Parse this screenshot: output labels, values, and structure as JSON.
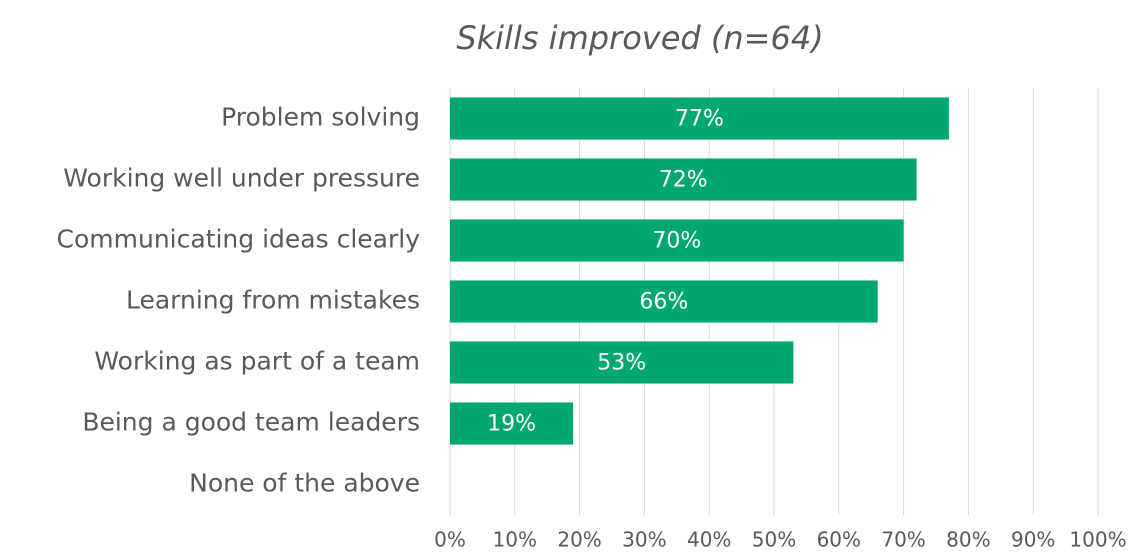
{
  "chart_data": {
    "type": "barh",
    "title": "Skills improved (n=64)",
    "categories": [
      "Problem solving",
      "Working well under pressure",
      "Communicating ideas clearly",
      "Learning from mistakes",
      "Working as part of a team",
      "Being a good team leaders",
      "None of the above"
    ],
    "values": [
      77,
      72,
      70,
      66,
      53,
      19,
      0
    ],
    "value_labels": [
      "77%",
      "72%",
      "70%",
      "66%",
      "53%",
      "19%",
      null
    ],
    "color": "#00a870",
    "xlim": [
      0,
      100
    ],
    "xticks": [
      {
        "value": 0,
        "label": "0%"
      },
      {
        "value": 10,
        "label": "10%"
      },
      {
        "value": 20,
        "label": "20%"
      },
      {
        "value": 30,
        "label": "30%"
      },
      {
        "value": 40,
        "label": "40%"
      },
      {
        "value": 50,
        "label": "50%"
      },
      {
        "value": 60,
        "label": "60%"
      },
      {
        "value": 70,
        "label": "70%"
      },
      {
        "value": 80,
        "label": "80%"
      },
      {
        "value": 90,
        "label": "90%"
      },
      {
        "value": 100,
        "label": "100%"
      }
    ],
    "grid": true
  }
}
